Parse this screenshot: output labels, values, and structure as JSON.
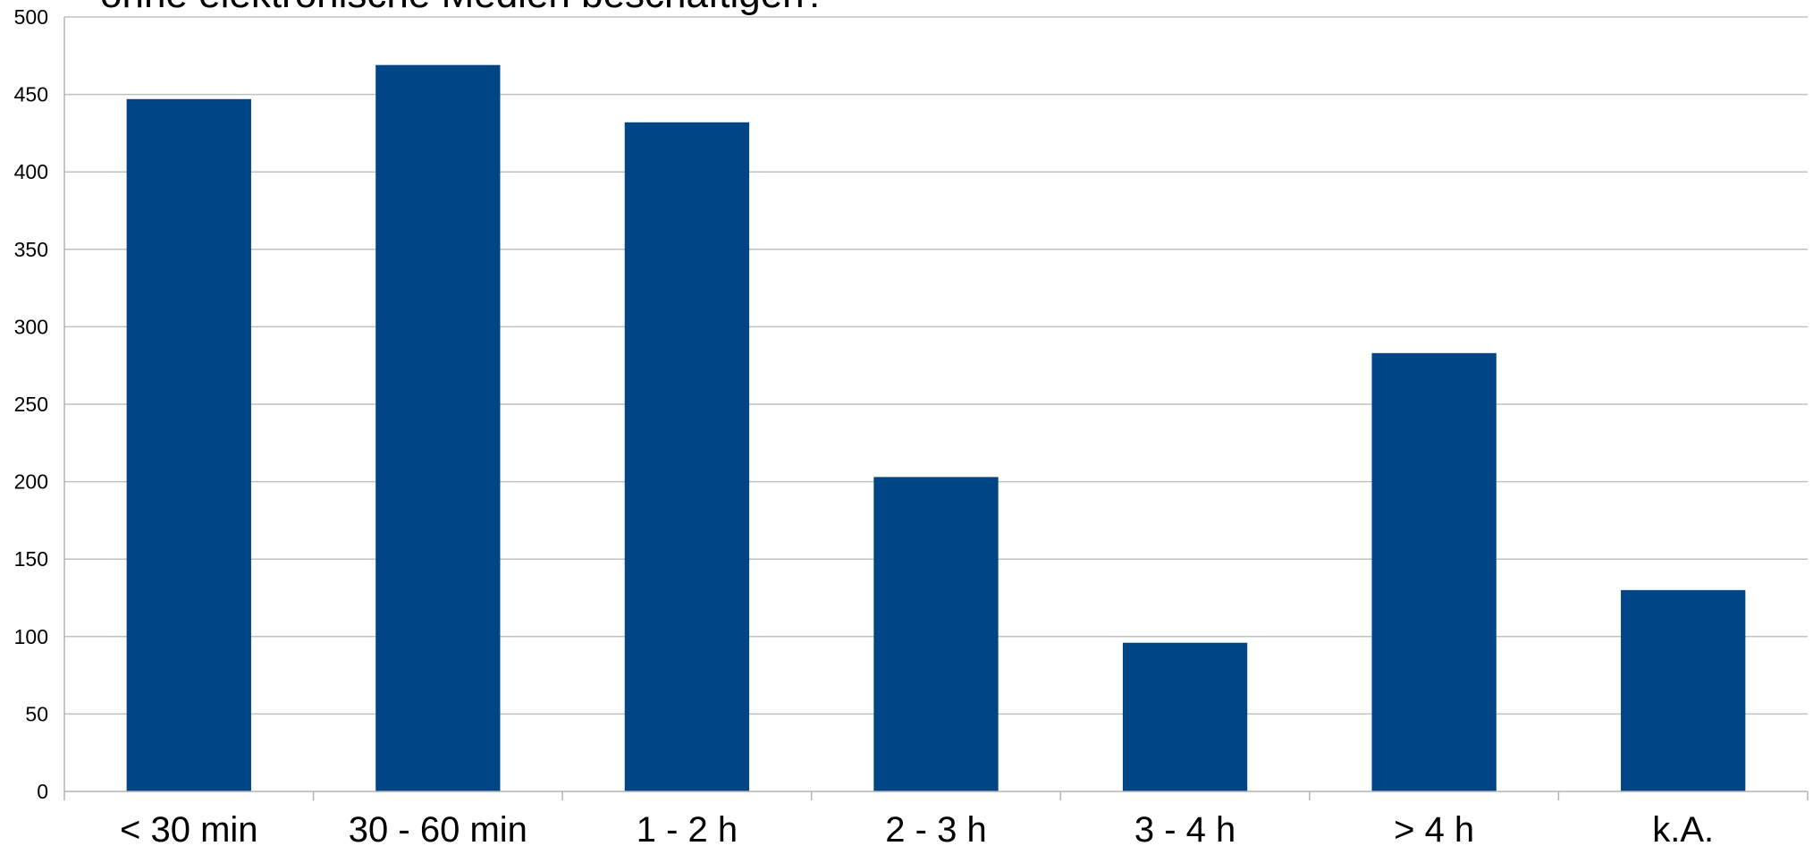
{
  "chart_data": {
    "type": "bar",
    "title": "ohne elektronische Medien beschäftigen?",
    "xlabel": "",
    "ylabel": "",
    "categories": [
      "< 30 min",
      "30 - 60 min",
      "1 - 2 h",
      "2 - 3 h",
      "3 - 4 h",
      "> 4 h",
      "k.A."
    ],
    "values": [
      447,
      469,
      432,
      203,
      96,
      283,
      130
    ],
    "ylim": [
      0,
      500
    ],
    "yticks": [
      0,
      50,
      100,
      150,
      200,
      250,
      300,
      350,
      400,
      450,
      500
    ],
    "grid": true,
    "legend": "none",
    "colors": {
      "bar": "#004586",
      "grid": "#c0c0c0",
      "axis": "#b3b3b3"
    }
  }
}
